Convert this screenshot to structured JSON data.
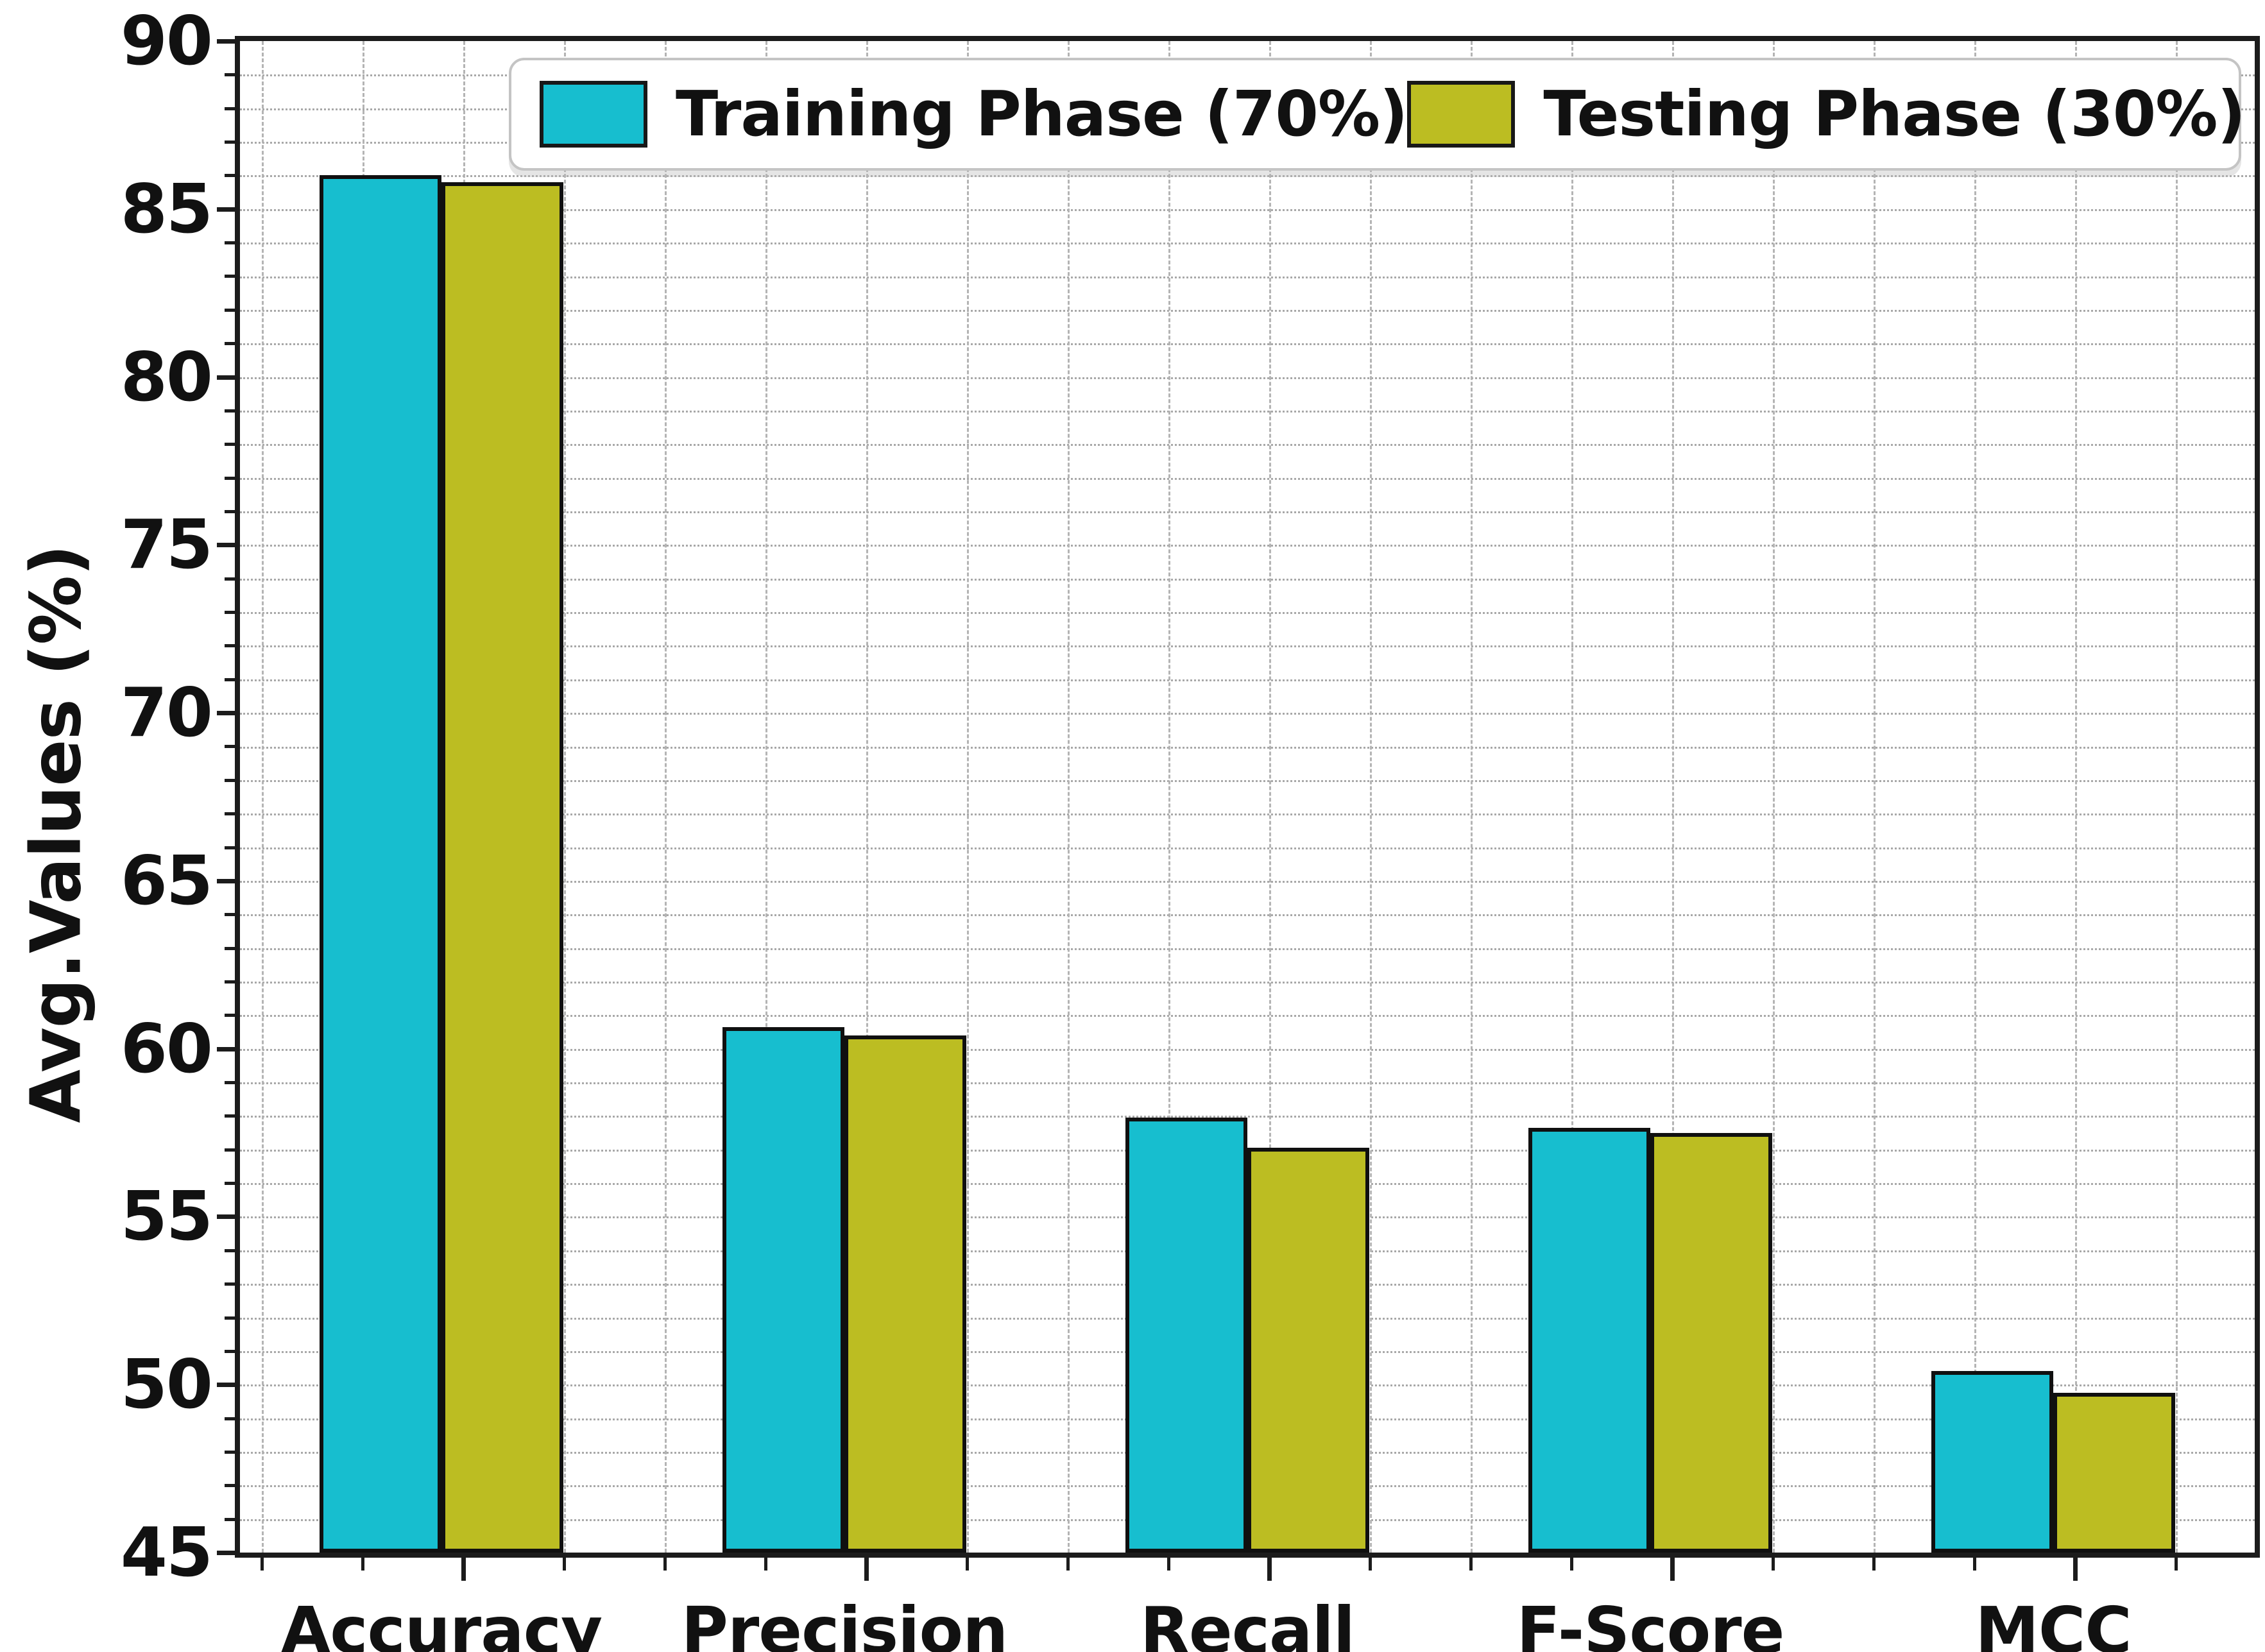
{
  "chart_data": {
    "type": "bar",
    "title": "",
    "xlabel": "",
    "ylabel": "Avg.Values (%)",
    "categories": [
      "Accuracy",
      "Precision",
      "Recall",
      "F-Score",
      "MCC"
    ],
    "series": [
      {
        "name": "Training Phase (70%)",
        "color": "#17becf",
        "values": [
          86.0,
          60.65,
          57.95,
          57.65,
          50.4
        ]
      },
      {
        "name": "Testing Phase (30%)",
        "color": "#bcbd22",
        "values": [
          85.8,
          60.4,
          57.05,
          57.5,
          49.75
        ]
      }
    ],
    "ylim": [
      45,
      90
    ],
    "y_major_step": 5,
    "y_minor_step": 1,
    "y_major_ticks": [
      45,
      50,
      55,
      60,
      65,
      70,
      75,
      80,
      85,
      90
    ],
    "grid": {
      "horizontal": "dotted, every 1 unit",
      "vertical": "dashed, minor x locator",
      "gridline_color": "#aaaaaa"
    },
    "bar_edge_color": "#101010",
    "legend_position": "upper center, wide rounded box"
  },
  "legend": {
    "items": [
      {
        "label": "Training Phase (70%)",
        "color": "#17becf"
      },
      {
        "label": "Testing Phase (30%)",
        "color": "#bcbd22"
      }
    ]
  },
  "axes": {
    "ylabel": "Avg.Values (%)",
    "y_tick_labels": [
      "45",
      "50",
      "55",
      "60",
      "65",
      "70",
      "75",
      "80",
      "85",
      "90"
    ],
    "x_tick_labels": [
      "Accuracy",
      "Precision",
      "Recall",
      "F-Score",
      "MCC"
    ]
  }
}
